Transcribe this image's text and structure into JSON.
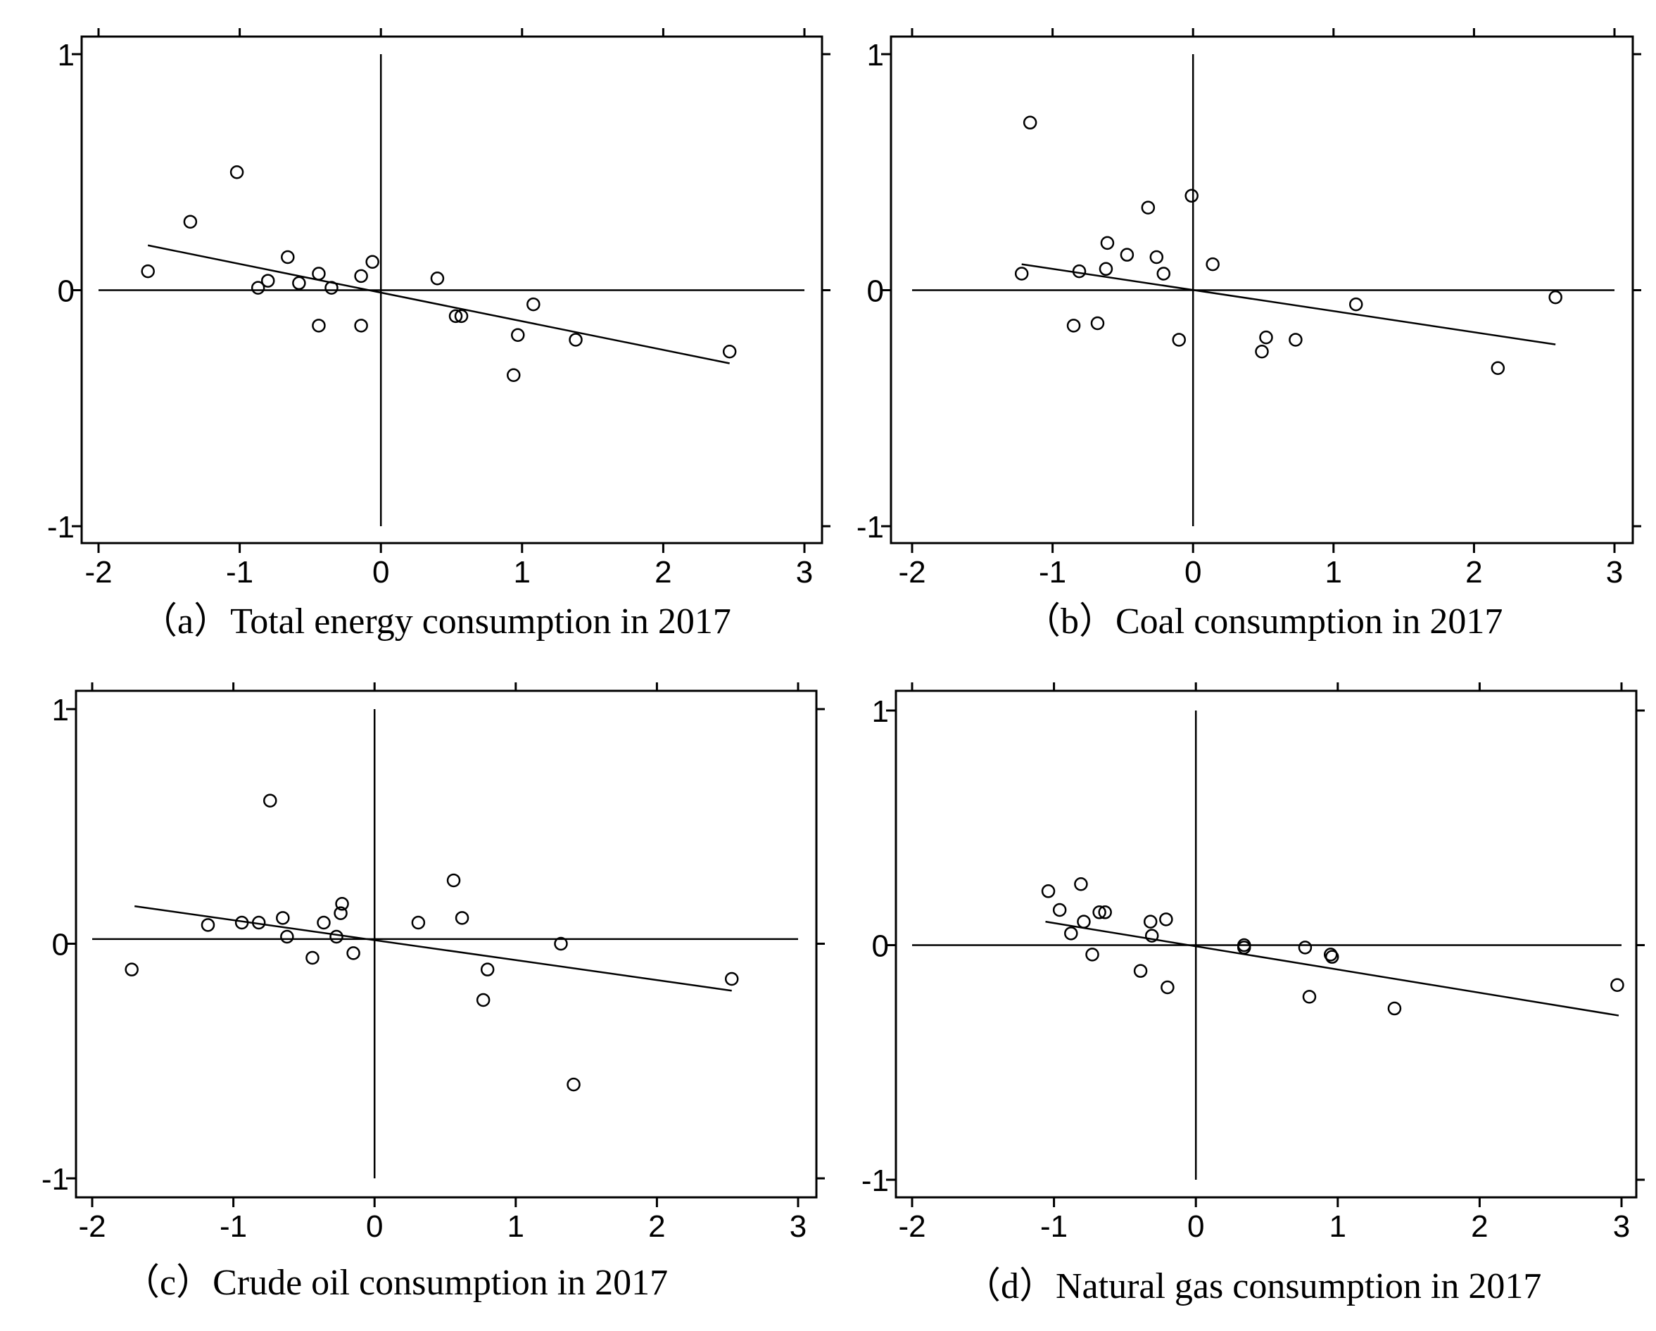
{
  "chart_data": [
    {
      "type": "scatter",
      "title": "",
      "caption": "（a）Total energy consumption in 2017",
      "xlabel": "",
      "ylabel": "",
      "xlim": [
        -2.2,
        3.1
      ],
      "ylim": [
        -1.05,
        1.05
      ],
      "xticks": [
        -2,
        -1,
        0,
        1,
        2,
        3
      ],
      "xtick_labels": [
        "-2",
        "-1",
        "0",
        "1",
        "2",
        "3"
      ],
      "yticks": [
        -1,
        0,
        1
      ],
      "ytick_labels": [
        "-1",
        "0",
        "1"
      ],
      "ref_lines": {
        "x": 0,
        "y": 0
      },
      "fit_line": {
        "x": [
          -1.65,
          2.47
        ],
        "y": [
          0.19,
          -0.31
        ]
      },
      "points": {
        "x": [
          -1.65,
          -1.35,
          -1.02,
          -0.87,
          -0.8,
          -0.66,
          -0.58,
          -0.44,
          -0.44,
          -0.35,
          -0.14,
          -0.14,
          -0.06,
          0.4,
          0.53,
          0.57,
          0.94,
          0.97,
          1.08,
          1.38,
          2.47
        ],
        "y": [
          0.08,
          0.29,
          0.5,
          0.01,
          0.04,
          0.14,
          0.03,
          -0.15,
          0.07,
          0.01,
          0.06,
          -0.15,
          0.12,
          0.05,
          -0.11,
          -0.11,
          -0.36,
          -0.19,
          -0.06,
          -0.21,
          -0.26
        ]
      }
    },
    {
      "type": "scatter",
      "title": "",
      "caption": "（b）Coal consumption in 2017",
      "xlabel": "",
      "ylabel": "",
      "xlim": [
        -2.2,
        3.1
      ],
      "ylim": [
        -1.05,
        1.05
      ],
      "xticks": [
        -2,
        -1,
        0,
        1,
        2,
        3
      ],
      "xtick_labels": [
        "-2",
        "-1",
        "0",
        "1",
        "2",
        "3"
      ],
      "yticks": [
        -1,
        0,
        1
      ],
      "ytick_labels": [
        "-1",
        "0",
        "1"
      ],
      "ref_lines": {
        "x": 0,
        "y": 0
      },
      "fit_line": {
        "x": [
          -1.22,
          2.58
        ],
        "y": [
          0.11,
          -0.23
        ]
      },
      "points": {
        "x": [
          -1.22,
          -1.16,
          -0.85,
          -0.81,
          -0.68,
          -0.62,
          -0.61,
          -0.47,
          -0.32,
          -0.26,
          -0.21,
          -0.1,
          -0.01,
          0.14,
          0.49,
          0.52,
          0.73,
          1.16,
          2.17,
          2.58
        ],
        "y": [
          0.07,
          0.71,
          -0.15,
          0.08,
          -0.14,
          0.09,
          0.2,
          0.15,
          0.35,
          0.14,
          0.07,
          -0.21,
          0.4,
          0.11,
          -0.26,
          -0.2,
          -0.21,
          -0.06,
          -0.33,
          -0.03
        ]
      }
    },
    {
      "type": "scatter",
      "title": "",
      "caption": "（c）Crude oil consumption in 2017",
      "xlabel": "",
      "ylabel": "",
      "xlim": [
        -2.2,
        3.1
      ],
      "ylim": [
        -1.05,
        1.05
      ],
      "xticks": [
        -2,
        -1,
        0,
        1,
        2,
        3
      ],
      "xtick_labels": [
        "-2",
        "-1",
        "0",
        "1",
        "2",
        "3"
      ],
      "yticks": [
        -1,
        0,
        1
      ],
      "ytick_labels": [
        "-1",
        "0",
        "1"
      ],
      "ref_lines": {
        "x": 0,
        "y": 0.02
      },
      "fit_line": {
        "x": [
          -1.7,
          2.53
        ],
        "y": [
          0.16,
          -0.2
        ]
      },
      "points": {
        "x": [
          -1.72,
          -1.18,
          -0.94,
          -0.82,
          -0.74,
          -0.65,
          -0.62,
          -0.44,
          -0.36,
          -0.27,
          -0.24,
          -0.23,
          -0.15,
          0.31,
          0.56,
          0.62,
          0.77,
          0.8,
          1.32,
          1.41,
          2.53
        ],
        "y": [
          -0.11,
          0.08,
          0.09,
          0.09,
          0.61,
          0.11,
          0.03,
          -0.06,
          0.09,
          0.03,
          0.13,
          0.17,
          -0.04,
          0.09,
          0.27,
          0.11,
          -0.24,
          -0.11,
          0.0,
          -0.6,
          -0.15
        ]
      }
    },
    {
      "type": "scatter",
      "title": "",
      "caption": "（d）Natural gas consumption in 2017",
      "xlabel": "",
      "ylabel": "",
      "xlim": [
        -2.2,
        3.1
      ],
      "ylim": [
        -1.05,
        1.05
      ],
      "xticks": [
        -2,
        -1,
        0,
        1,
        2,
        3
      ],
      "xtick_labels": [
        "-2",
        "-1",
        "0",
        "1",
        "2",
        "3"
      ],
      "yticks": [
        -1,
        0,
        1
      ],
      "ytick_labels": [
        "-1",
        "0",
        "1"
      ],
      "ref_lines": {
        "x": 0,
        "y": 0
      },
      "fit_line": {
        "x": [
          -1.06,
          2.98
        ],
        "y": [
          0.1,
          -0.3
        ]
      },
      "points": {
        "x": [
          -1.04,
          -0.96,
          -0.88,
          -0.81,
          -0.79,
          -0.73,
          -0.68,
          -0.64,
          -0.39,
          -0.32,
          -0.31,
          -0.21,
          -0.2,
          0.34,
          0.34,
          0.77,
          0.8,
          0.95,
          0.96,
          1.4,
          2.97
        ],
        "y": [
          0.23,
          0.15,
          0.05,
          0.26,
          0.1,
          -0.04,
          0.14,
          0.14,
          -0.11,
          0.1,
          0.04,
          0.11,
          -0.18,
          0.0,
          -0.01,
          -0.01,
          -0.22,
          -0.04,
          -0.05,
          -0.27,
          -0.17
        ]
      }
    }
  ]
}
